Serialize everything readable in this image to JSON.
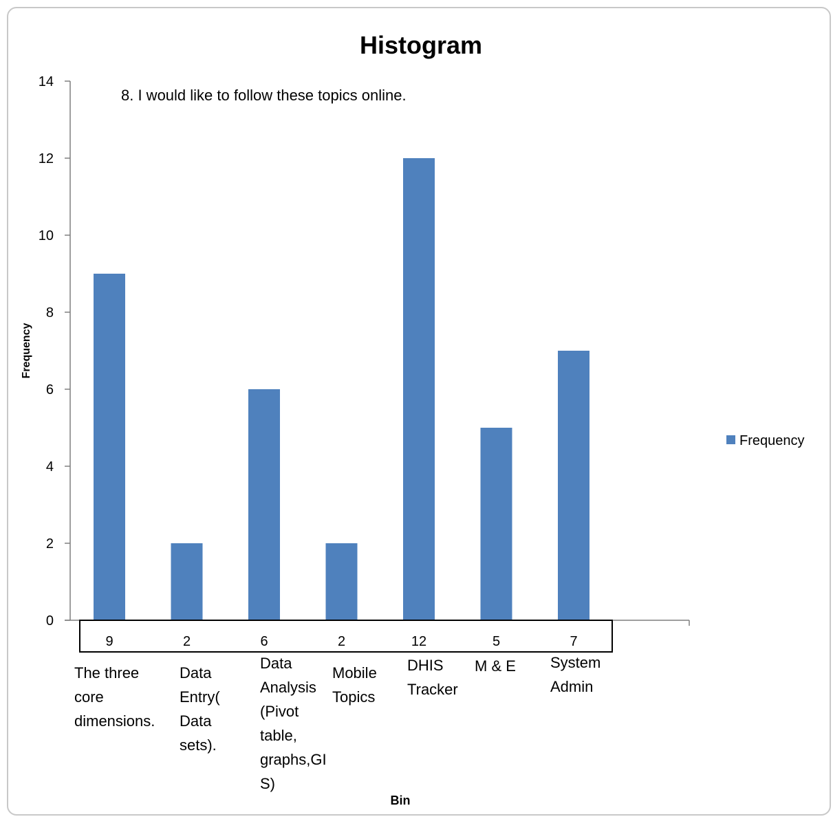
{
  "chart_data": {
    "type": "bar",
    "title": "Histogram",
    "subtitle": "8. I would like to follow these topics online.",
    "xlabel": "Bin",
    "ylabel": "Frequency",
    "ylim": [
      0,
      14
    ],
    "yticks": [
      0,
      2,
      4,
      6,
      8,
      10,
      12,
      14
    ],
    "grid": false,
    "legend": "right",
    "color": "#4f81bd",
    "series": [
      {
        "name": "Frequency",
        "values": [
          9,
          2,
          6,
          2,
          12,
          5,
          7
        ]
      }
    ],
    "value_labels": [
      "9",
      "2",
      "6",
      "2",
      "12",
      "5",
      "7"
    ],
    "categories": [
      [
        "The three",
        "core",
        "dimensions."
      ],
      [
        "Data",
        "Entry(",
        "Data",
        "sets)."
      ],
      [
        "Data",
        "Analysis",
        "(Pivot",
        "table,",
        "graphs,GI",
        "S)"
      ],
      [
        "Mobile",
        "Topics"
      ],
      [
        "DHIS",
        "Tracker"
      ],
      [
        "M & E"
      ],
      [
        "System",
        "Admin"
      ]
    ]
  }
}
